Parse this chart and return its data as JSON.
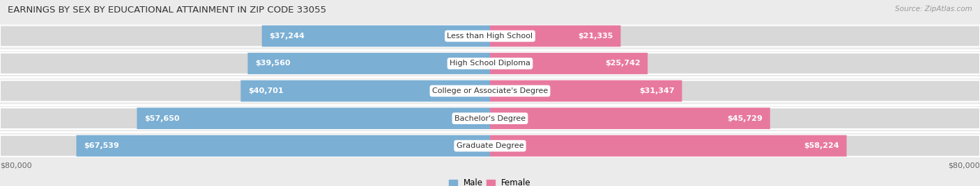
{
  "title": "EARNINGS BY SEX BY EDUCATIONAL ATTAINMENT IN ZIP CODE 33055",
  "source": "Source: ZipAtlas.com",
  "categories": [
    "Less than High School",
    "High School Diploma",
    "College or Associate's Degree",
    "Bachelor's Degree",
    "Graduate Degree"
  ],
  "male_values": [
    37244,
    39560,
    40701,
    57650,
    67539
  ],
  "female_values": [
    21335,
    25742,
    31347,
    45729,
    58224
  ],
  "male_color": "#7bafd4",
  "female_color": "#e8799e",
  "background_color": "#ebebeb",
  "bar_bg_color": "#d8d8d8",
  "max_value": 80000,
  "axis_label": "$80,000",
  "title_fontsize": 9.5,
  "source_fontsize": 7.5,
  "bar_label_fontsize": 8,
  "category_fontsize": 8,
  "legend_fontsize": 8.5,
  "inside_label_threshold_male": 20000,
  "inside_label_threshold_female": 15000
}
